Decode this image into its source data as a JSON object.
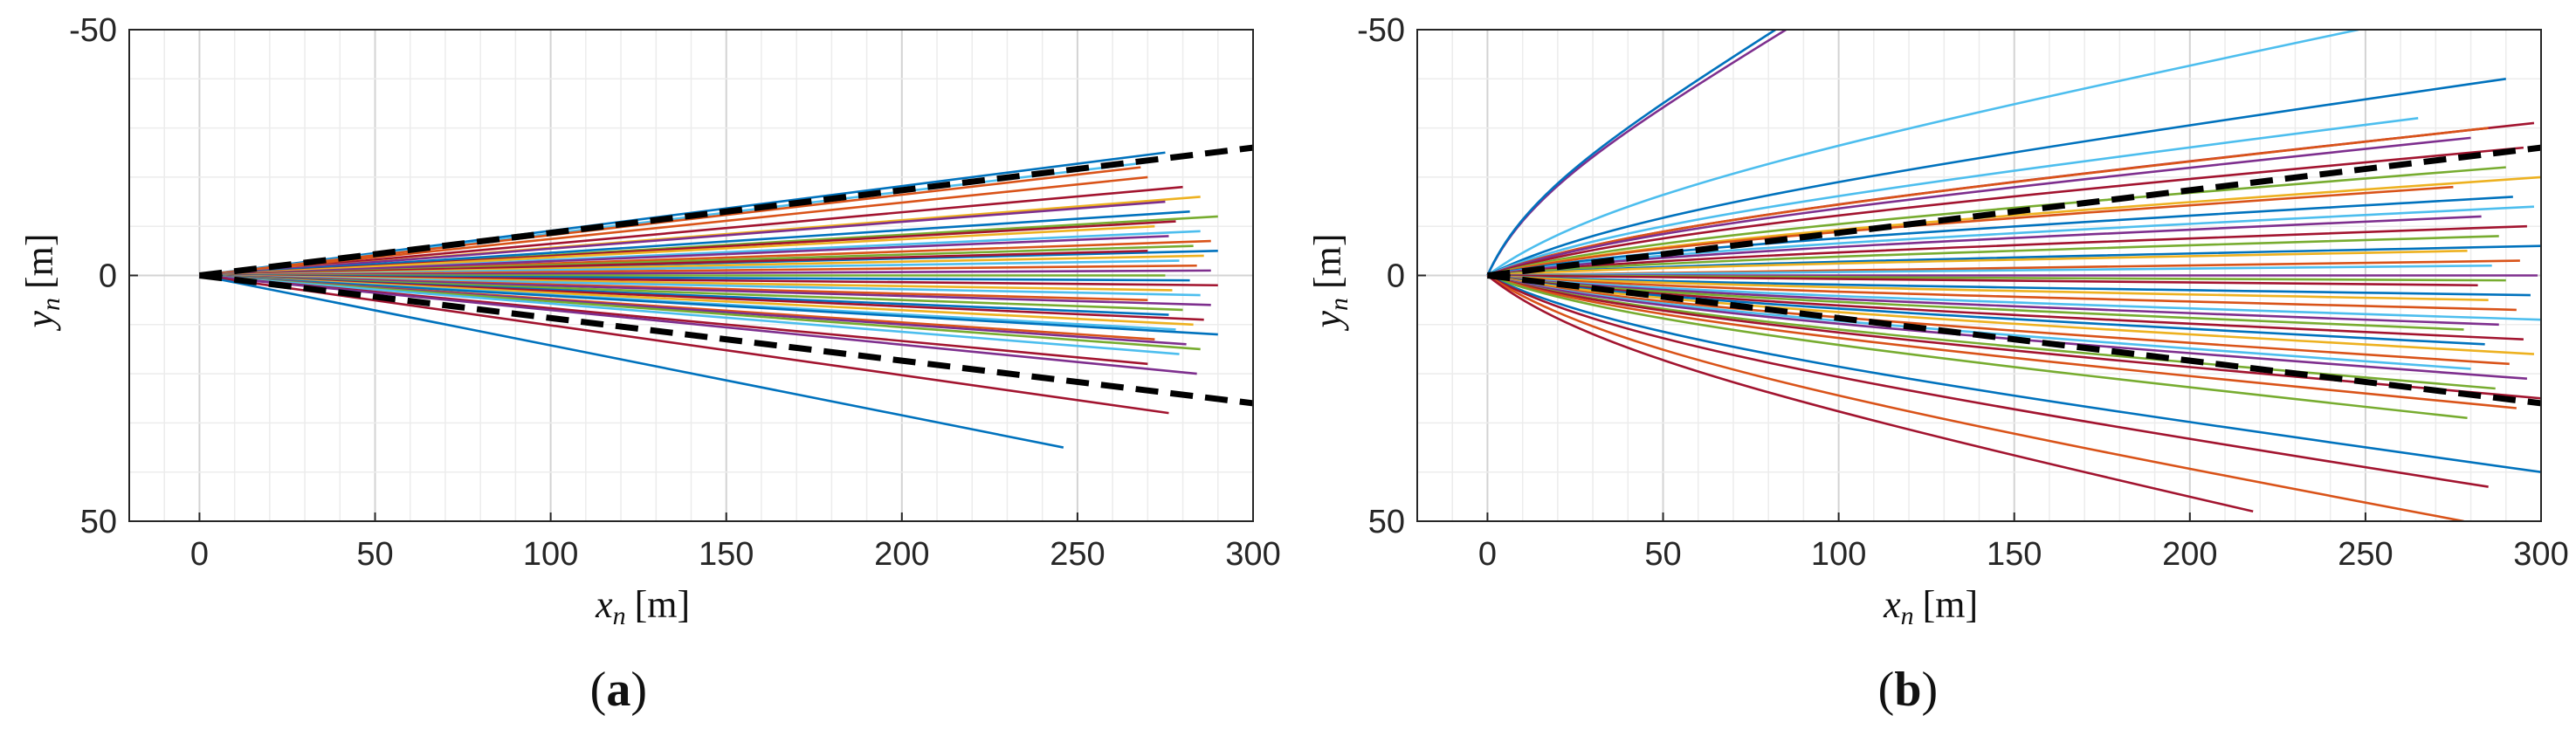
{
  "chart_data": [
    {
      "type": "line",
      "panel": "(a)",
      "panel_letter": "a",
      "xlabel_var": "x",
      "xlabel_sub": "n",
      "xlabel_unit": "[m]",
      "ylabel_var": "y",
      "ylabel_sub": "n",
      "ylabel_unit": "[m]",
      "xlim": [
        -20,
        300
      ],
      "ylim": [
        -50,
        50
      ],
      "y_reversed": true,
      "grid": "major and minor",
      "xticks": [
        0,
        50,
        100,
        150,
        200,
        250,
        300
      ],
      "yticks": [
        -50,
        0,
        50
      ],
      "xtick_labels": [
        "0",
        "50",
        "100",
        "150",
        "200",
        "250",
        "300"
      ],
      "ytick_labels": [
        "-50",
        "0",
        "50"
      ],
      "boundaries": {
        "style": "black dashed",
        "lines": [
          [
            [
              0,
              0
            ],
            [
              300,
              -26
            ]
          ],
          [
            [
              0,
              0
            ],
            [
              300,
              26
            ]
          ]
        ]
      },
      "trajectories": {
        "shape": "straight",
        "series": [
          {
            "end": [
              275,
              -25
            ],
            "color": "#0072BD"
          },
          {
            "end": [
              270,
              -23
            ],
            "color": "#4DBEEE"
          },
          {
            "end": [
              268,
              -22
            ],
            "color": "#D95319"
          },
          {
            "end": [
              280,
              -18
            ],
            "color": "#A2142F"
          },
          {
            "end": [
              270,
              -20
            ],
            "color": "#D95319"
          },
          {
            "end": [
              285,
              -16
            ],
            "color": "#EDB120"
          },
          {
            "end": [
              275,
              -15
            ],
            "color": "#7E2F8E"
          },
          {
            "end": [
              290,
              -12
            ],
            "color": "#77AC30"
          },
          {
            "end": [
              282,
              -13
            ],
            "color": "#0072BD"
          },
          {
            "end": [
              278,
              -11
            ],
            "color": "#A2142F"
          },
          {
            "end": [
              285,
              -9
            ],
            "color": "#4DBEEE"
          },
          {
            "end": [
              272,
              -10
            ],
            "color": "#EDB120"
          },
          {
            "end": [
              288,
              -7
            ],
            "color": "#D95319"
          },
          {
            "end": [
              276,
              -8
            ],
            "color": "#7E2F8E"
          },
          {
            "end": [
              283,
              -6
            ],
            "color": "#77AC30"
          },
          {
            "end": [
              290,
              -5
            ],
            "color": "#0072BD"
          },
          {
            "end": [
              270,
              -5
            ],
            "color": "#A2142F"
          },
          {
            "end": [
              286,
              -4
            ],
            "color": "#EDB120"
          },
          {
            "end": [
              279,
              -3
            ],
            "color": "#4DBEEE"
          },
          {
            "end": [
              284,
              -2
            ],
            "color": "#D95319"
          },
          {
            "end": [
              288,
              -1
            ],
            "color": "#7E2F8E"
          },
          {
            "end": [
              275,
              0
            ],
            "color": "#77AC30"
          },
          {
            "end": [
              282,
              1
            ],
            "color": "#0072BD"
          },
          {
            "end": [
              290,
              2
            ],
            "color": "#A2142F"
          },
          {
            "end": [
              277,
              3
            ],
            "color": "#EDB120"
          },
          {
            "end": [
              285,
              4
            ],
            "color": "#4DBEEE"
          },
          {
            "end": [
              270,
              5
            ],
            "color": "#D95319"
          },
          {
            "end": [
              288,
              6
            ],
            "color": "#7E2F8E"
          },
          {
            "end": [
              280,
              7
            ],
            "color": "#77AC30"
          },
          {
            "end": [
              276,
              8
            ],
            "color": "#0072BD"
          },
          {
            "end": [
              286,
              9
            ],
            "color": "#A2142F"
          },
          {
            "end": [
              283,
              10
            ],
            "color": "#EDB120"
          },
          {
            "end": [
              278,
              11
            ],
            "color": "#4DBEEE"
          },
          {
            "end": [
              290,
              12
            ],
            "color": "#0072BD"
          },
          {
            "end": [
              272,
              13
            ],
            "color": "#D95319"
          },
          {
            "end": [
              281,
              14
            ],
            "color": "#7E2F8E"
          },
          {
            "end": [
              285,
              15
            ],
            "color": "#77AC30"
          },
          {
            "end": [
              279,
              16
            ],
            "color": "#4DBEEE"
          },
          {
            "end": [
              270,
              18
            ],
            "color": "#A2142F"
          },
          {
            "end": [
              284,
              20
            ],
            "color": "#7E2F8E"
          },
          {
            "end": [
              276,
              28
            ],
            "color": "#A2142F"
          },
          {
            "end": [
              246,
              35
            ],
            "color": "#0072BD"
          }
        ]
      }
    },
    {
      "type": "line",
      "panel": "(b)",
      "panel_letter": "b",
      "xlabel_var": "x",
      "xlabel_sub": "n",
      "xlabel_unit": "[m]",
      "ylabel_var": "y",
      "ylabel_sub": "n",
      "ylabel_unit": "[m]",
      "xlim": [
        -20,
        300
      ],
      "ylim": [
        -50,
        50
      ],
      "y_reversed": true,
      "grid": "major and minor",
      "xticks": [
        0,
        50,
        100,
        150,
        200,
        250,
        300
      ],
      "yticks": [
        -50,
        0,
        50
      ],
      "xtick_labels": [
        "0",
        "50",
        "100",
        "150",
        "200",
        "250",
        "300"
      ],
      "ytick_labels": [
        "-50",
        "0",
        "50"
      ],
      "boundaries": {
        "style": "black dashed",
        "lines": [
          [
            [
              0,
              0
            ],
            [
              300,
              -26
            ]
          ],
          [
            [
              0,
              0
            ],
            [
              300,
              26
            ]
          ]
        ]
      },
      "trajectories": {
        "shape": "curved",
        "series": [
          {
            "end": [
              85,
              -50
            ],
            "color": "#7E2F8E"
          },
          {
            "end": [
              82,
              -50
            ],
            "color": "#0072BD"
          },
          {
            "end": [
              248,
              -50
            ],
            "color": "#4DBEEE"
          },
          {
            "end": [
              290,
              -40
            ],
            "color": "#0072BD"
          },
          {
            "end": [
              265,
              -32
            ],
            "color": "#4DBEEE"
          },
          {
            "end": [
              298,
              -31
            ],
            "color": "#A2142F"
          },
          {
            "end": [
              285,
              -30
            ],
            "color": "#D95319"
          },
          {
            "end": [
              280,
              -28
            ],
            "color": "#7E2F8E"
          },
          {
            "end": [
              295,
              -26
            ],
            "color": "#A2142F"
          },
          {
            "end": [
              290,
              -22
            ],
            "color": "#77AC30"
          },
          {
            "end": [
              300,
              -20
            ],
            "color": "#EDB120"
          },
          {
            "end": [
              275,
              -18
            ],
            "color": "#D95319"
          },
          {
            "end": [
              292,
              -16
            ],
            "color": "#0072BD"
          },
          {
            "end": [
              298,
              -14
            ],
            "color": "#4DBEEE"
          },
          {
            "end": [
              283,
              -12
            ],
            "color": "#7E2F8E"
          },
          {
            "end": [
              296,
              -10
            ],
            "color": "#A2142F"
          },
          {
            "end": [
              288,
              -8
            ],
            "color": "#77AC30"
          },
          {
            "end": [
              300,
              -6
            ],
            "color": "#0072BD"
          },
          {
            "end": [
              279,
              -5
            ],
            "color": "#EDB120"
          },
          {
            "end": [
              294,
              -3
            ],
            "color": "#D95319"
          },
          {
            "end": [
              286,
              -2
            ],
            "color": "#4DBEEE"
          },
          {
            "end": [
              299,
              0
            ],
            "color": "#7E2F8E"
          },
          {
            "end": [
              290,
              1
            ],
            "color": "#77AC30"
          },
          {
            "end": [
              282,
              2
            ],
            "color": "#A2142F"
          },
          {
            "end": [
              297,
              4
            ],
            "color": "#0072BD"
          },
          {
            "end": [
              285,
              5
            ],
            "color": "#EDB120"
          },
          {
            "end": [
              293,
              7
            ],
            "color": "#D95319"
          },
          {
            "end": [
              300,
              9
            ],
            "color": "#4DBEEE"
          },
          {
            "end": [
              288,
              10
            ],
            "color": "#7E2F8E"
          },
          {
            "end": [
              278,
              11
            ],
            "color": "#77AC30"
          },
          {
            "end": [
              295,
              13
            ],
            "color": "#A2142F"
          },
          {
            "end": [
              284,
              14
            ],
            "color": "#0072BD"
          },
          {
            "end": [
              298,
              16
            ],
            "color": "#EDB120"
          },
          {
            "end": [
              291,
              18
            ],
            "color": "#D95319"
          },
          {
            "end": [
              280,
              19
            ],
            "color": "#4DBEEE"
          },
          {
            "end": [
              296,
              21
            ],
            "color": "#7E2F8E"
          },
          {
            "end": [
              287,
              23
            ],
            "color": "#77AC30"
          },
          {
            "end": [
              300,
              25
            ],
            "color": "#A2142F"
          },
          {
            "end": [
              293,
              27
            ],
            "color": "#D95319"
          },
          {
            "end": [
              279,
              29
            ],
            "color": "#77AC30"
          },
          {
            "end": [
              300,
              40
            ],
            "color": "#0072BD"
          },
          {
            "end": [
              285,
              43
            ],
            "color": "#A2142F"
          },
          {
            "end": [
              278,
              50
            ],
            "color": "#D95319"
          },
          {
            "end": [
              218,
              48
            ],
            "color": "#A2142F"
          }
        ]
      }
    }
  ]
}
